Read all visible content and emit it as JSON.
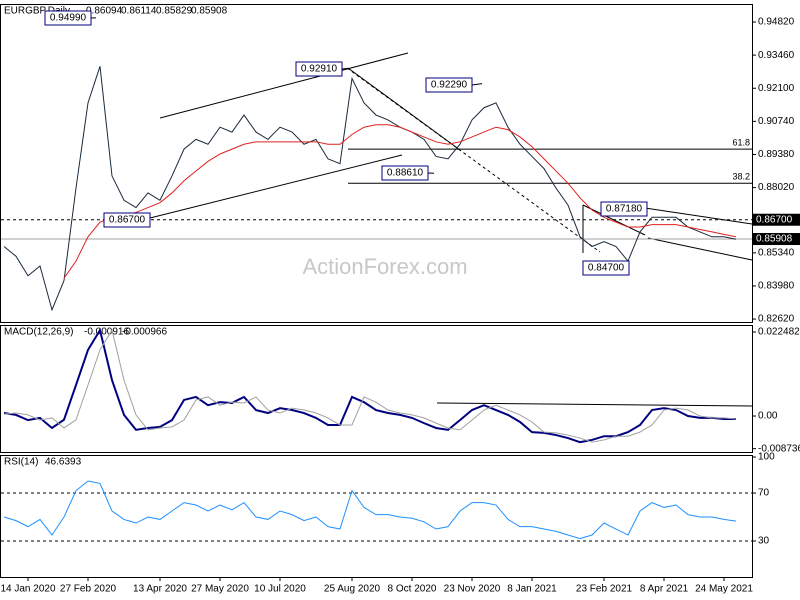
{
  "chart_data": [
    {
      "type": "line",
      "title": "EURGBP,Daily",
      "quote": [
        0.86094,
        0.86114,
        0.85829,
        0.85908
      ],
      "watermark": "ActionForex.com",
      "categories": [
        null,
        null,
        "14 Jan 2020",
        null,
        null,
        null,
        null,
        "27 Feb 2020",
        null,
        null,
        null,
        null,
        null,
        "13 Apr 2020",
        null,
        null,
        null,
        null,
        "27 May 2020",
        null,
        null,
        null,
        null,
        "10 Jul 2020",
        null,
        null,
        null,
        null,
        null,
        "25 Aug 2020",
        null,
        null,
        null,
        null,
        "8 Oct 2020",
        null,
        null,
        null,
        null,
        "23 Nov 2020",
        null,
        null,
        null,
        null,
        "8 Jan 2021",
        null,
        null,
        null,
        null,
        null,
        "23 Feb 2021",
        null,
        null,
        null,
        null,
        "8 Apr 2021",
        null,
        null,
        null,
        null,
        "24 May 2021",
        null
      ],
      "series": [
        {
          "color": "#1a2a3a",
          "values": [
            0.856,
            0.852,
            0.844,
            0.848,
            0.83,
            0.842,
            0.88,
            0.915,
            0.93,
            0.885,
            0.875,
            0.872,
            0.878,
            0.875,
            0.885,
            0.896,
            0.9,
            0.898,
            0.905,
            0.903,
            0.91,
            0.903,
            0.9,
            0.905,
            0.903,
            0.898,
            0.9,
            0.892,
            0.89,
            0.925,
            0.915,
            0.91,
            0.908,
            0.905,
            0.903,
            0.9,
            0.893,
            0.892,
            0.898,
            0.908,
            0.913,
            0.915,
            0.905,
            0.898,
            0.893,
            0.888,
            0.88,
            0.873,
            0.86,
            0.856,
            0.858,
            0.856,
            0.85,
            0.862,
            0.868,
            0.868,
            0.868,
            0.864,
            0.862,
            0.86,
            0.86,
            0.859
          ]
        },
        {
          "color": "#e02020",
          "values": [
            null,
            null,
            null,
            null,
            null,
            0.843,
            0.85,
            0.86,
            0.866,
            0.868,
            0.869,
            0.87,
            0.872,
            0.874,
            0.878,
            0.883,
            0.887,
            0.891,
            0.894,
            0.896,
            0.898,
            0.899,
            0.899,
            0.899,
            0.899,
            0.899,
            0.899,
            0.898,
            0.898,
            0.902,
            0.905,
            0.906,
            0.906,
            0.905,
            0.903,
            0.901,
            0.899,
            0.898,
            0.899,
            0.901,
            0.903,
            0.905,
            0.904,
            0.901,
            0.897,
            0.892,
            0.887,
            0.882,
            0.876,
            0.871,
            0.868,
            0.866,
            0.864,
            0.864,
            0.865,
            0.865,
            0.865,
            0.864,
            0.863,
            0.862,
            0.861,
            0.86
          ]
        }
      ],
      "ylim": [
        0.825,
        0.9556
      ],
      "yticks": [
        {
          "value": 0.9482,
          "label": "0.94820"
        },
        {
          "value": 0.9346,
          "label": "0.93460"
        },
        {
          "value": 0.921,
          "label": "0.92100"
        },
        {
          "value": 0.9074,
          "label": "0.90740"
        },
        {
          "value": 0.8938,
          "label": "0.89380"
        },
        {
          "value": 0.8802,
          "label": "0.88020"
        },
        {
          "value": 0.8534,
          "label": "0.85340"
        },
        {
          "value": 0.8398,
          "label": "0.83980"
        },
        {
          "value": 0.8262,
          "label": "0.82620"
        }
      ],
      "levels": [
        {
          "value": 0.867,
          "label": "0.86700",
          "style": "dotted"
        },
        {
          "value": 0.85908,
          "label": "0.85908",
          "style": "solid"
        }
      ],
      "fib_levels": [
        {
          "value": 0.896,
          "label": "61.8"
        },
        {
          "value": 0.882,
          "label": "38.2"
        }
      ],
      "annotations": [
        {
          "value": 0.9499,
          "label": "0.94990"
        },
        {
          "value": 0.9291,
          "label": "0.92910"
        },
        {
          "value": 0.9229,
          "label": "0.92290"
        },
        {
          "value": 0.8861,
          "label": "0.88610"
        },
        {
          "value": 0.867,
          "label": "0.86700"
        },
        {
          "value": 0.8718,
          "label": "0.87180"
        },
        {
          "value": 0.847,
          "label": "0.84700"
        }
      ]
    },
    {
      "type": "line",
      "title": "MACD(12,26,9)",
      "readout": [
        -0.000916,
        -0.000966
      ],
      "series": [
        {
          "color": "#000080",
          "values": [
            0.0008,
            0.0003,
            -0.0011,
            -0.0005,
            -0.0032,
            -0.001,
            0.0083,
            0.0177,
            0.023,
            0.0096,
            0.0003,
            -0.0037,
            -0.0032,
            -0.0029,
            -0.0011,
            0.0043,
            0.0051,
            0.0029,
            0.0037,
            0.0035,
            0.0051,
            0.0016,
            0.0008,
            0.0021,
            0.0016,
            0.0008,
            -0.0005,
            -0.0024,
            -0.0024,
            0.0051,
            0.0037,
            0.0016,
            0.0008,
            0.0003,
            -0.0005,
            -0.0019,
            -0.0032,
            -0.0037,
            -0.0011,
            0.0016,
            0.0029,
            0.0016,
            0.0003,
            -0.0016,
            -0.0043,
            -0.0045,
            -0.0051,
            -0.0059,
            -0.007,
            -0.0064,
            -0.0054,
            -0.0054,
            -0.0043,
            -0.0024,
            0.0016,
            0.0021,
            0.0016,
            0,
            -0.0005,
            -0.0005,
            -0.0008,
            -0.0008
          ]
        },
        {
          "color": "#a0a0a0",
          "values": [
            0.0005,
            0.0008,
            0.0003,
            -0.0011,
            -0.0005,
            -0.0032,
            -0.001,
            0.0083,
            0.0177,
            0.023,
            0.0096,
            0.0003,
            -0.0037,
            -0.0032,
            -0.0029,
            -0.0011,
            0.0043,
            0.0051,
            0.0029,
            0.0037,
            0.0035,
            0.0051,
            0.0016,
            0.0008,
            0.0021,
            0.0016,
            0.0008,
            -0.0005,
            -0.0024,
            -0.0024,
            0.0051,
            0.0037,
            0.0016,
            0.0008,
            0.0003,
            -0.0005,
            -0.0019,
            -0.0032,
            -0.0037,
            -0.0011,
            0.0016,
            0.0029,
            0.0016,
            0.0003,
            -0.0016,
            -0.0043,
            -0.0045,
            -0.0051,
            -0.0059,
            -0.007,
            -0.0064,
            -0.0054,
            -0.0054,
            -0.0043,
            -0.0024,
            0.0016,
            0.0021,
            0.0016,
            0,
            -0.0005,
            -0.0005,
            -0.0008
          ]
        }
      ],
      "ylim": [
        -0.00963,
        0.02436
      ],
      "yticks": [
        0.022482,
        {
          "value": 0,
          "label": "0.00"
        },
        -0.008736
      ]
    },
    {
      "type": "line",
      "title": "RSI(14)",
      "readout": 46.6393,
      "series": [
        {
          "color": "#1e90ff",
          "values": [
            50,
            47,
            42,
            48,
            35,
            50,
            72,
            80,
            78,
            55,
            48,
            45,
            50,
            48,
            55,
            62,
            60,
            55,
            60,
            56,
            62,
            50,
            48,
            55,
            52,
            47,
            50,
            42,
            40,
            72,
            58,
            52,
            52,
            50,
            49,
            46,
            40,
            42,
            55,
            62,
            62,
            60,
            48,
            42,
            42,
            40,
            38,
            35,
            32,
            35,
            45,
            40,
            35,
            55,
            62,
            58,
            60,
            52,
            50,
            50,
            48,
            46.6
          ]
        }
      ],
      "ylim": [
        0,
        101.7
      ],
      "yticks": [
        30,
        70,
        100
      ],
      "levels": [
        30,
        70
      ]
    }
  ]
}
